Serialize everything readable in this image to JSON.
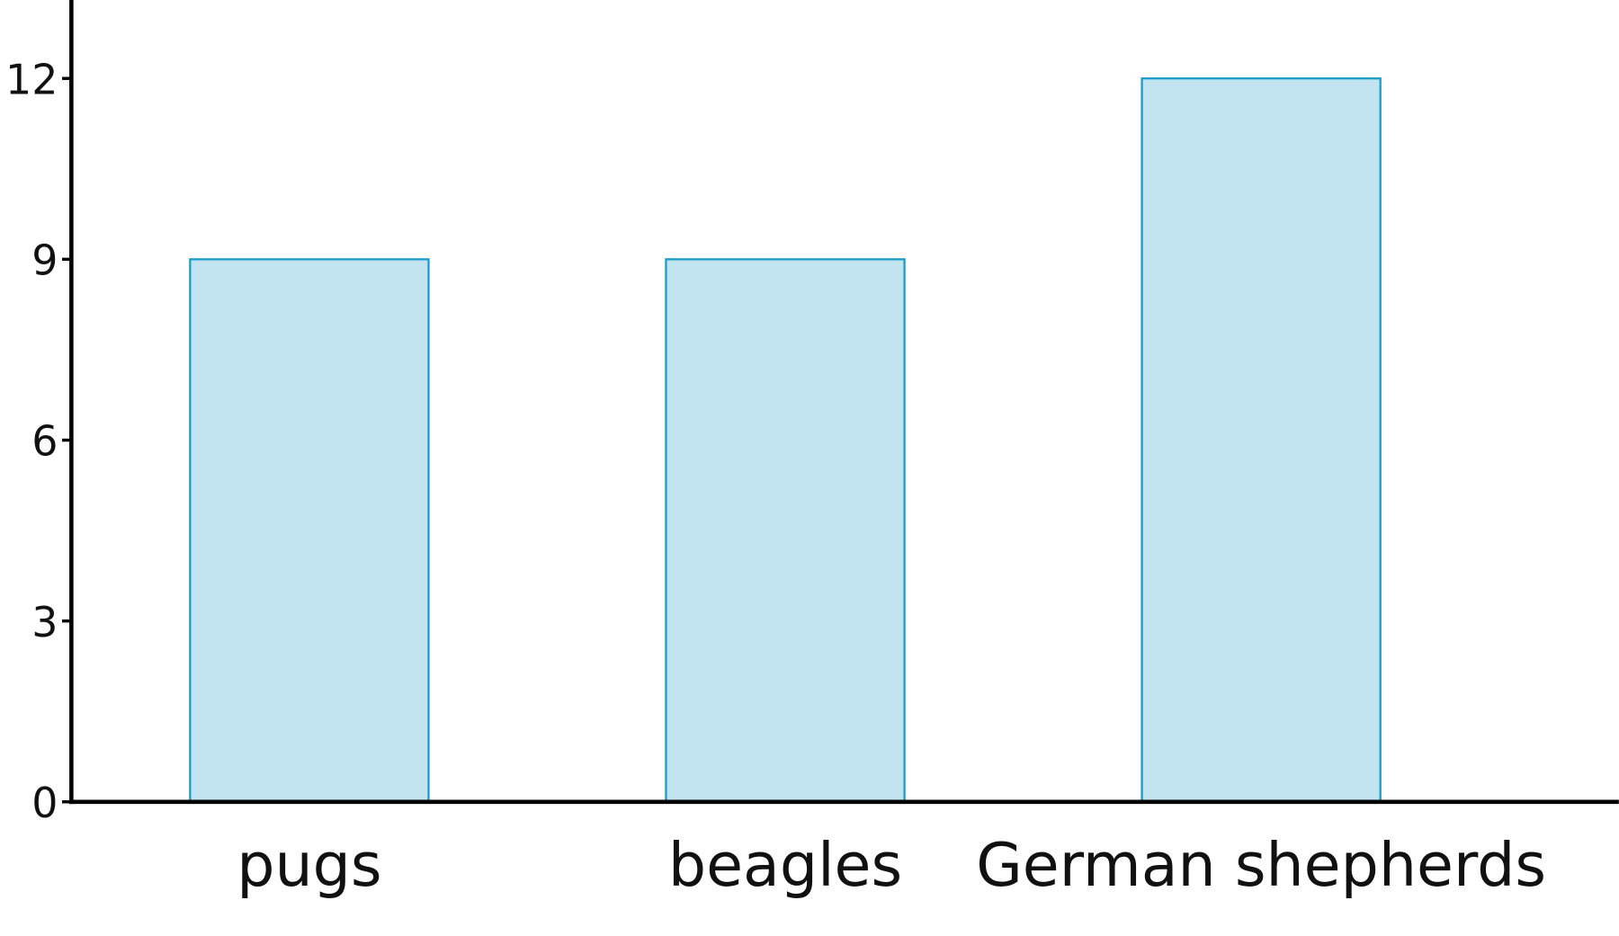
{
  "chart_data": {
    "type": "bar",
    "title": "",
    "xlabel": "",
    "ylabel": "",
    "categories": [
      "pugs",
      "beagles",
      "German shepherds"
    ],
    "values": [
      9,
      9,
      12
    ],
    "ylim": [
      0,
      13.3
    ],
    "yticks": [
      0,
      3,
      6,
      9,
      12
    ],
    "ytick_labels": [
      "0",
      "3",
      "6",
      "9",
      "12"
    ],
    "grid": false,
    "legend": "none",
    "colors": {
      "bar_fill": "#c2e4f0",
      "bar_stroke": "#1a9cc9",
      "axis": "#000000"
    }
  }
}
